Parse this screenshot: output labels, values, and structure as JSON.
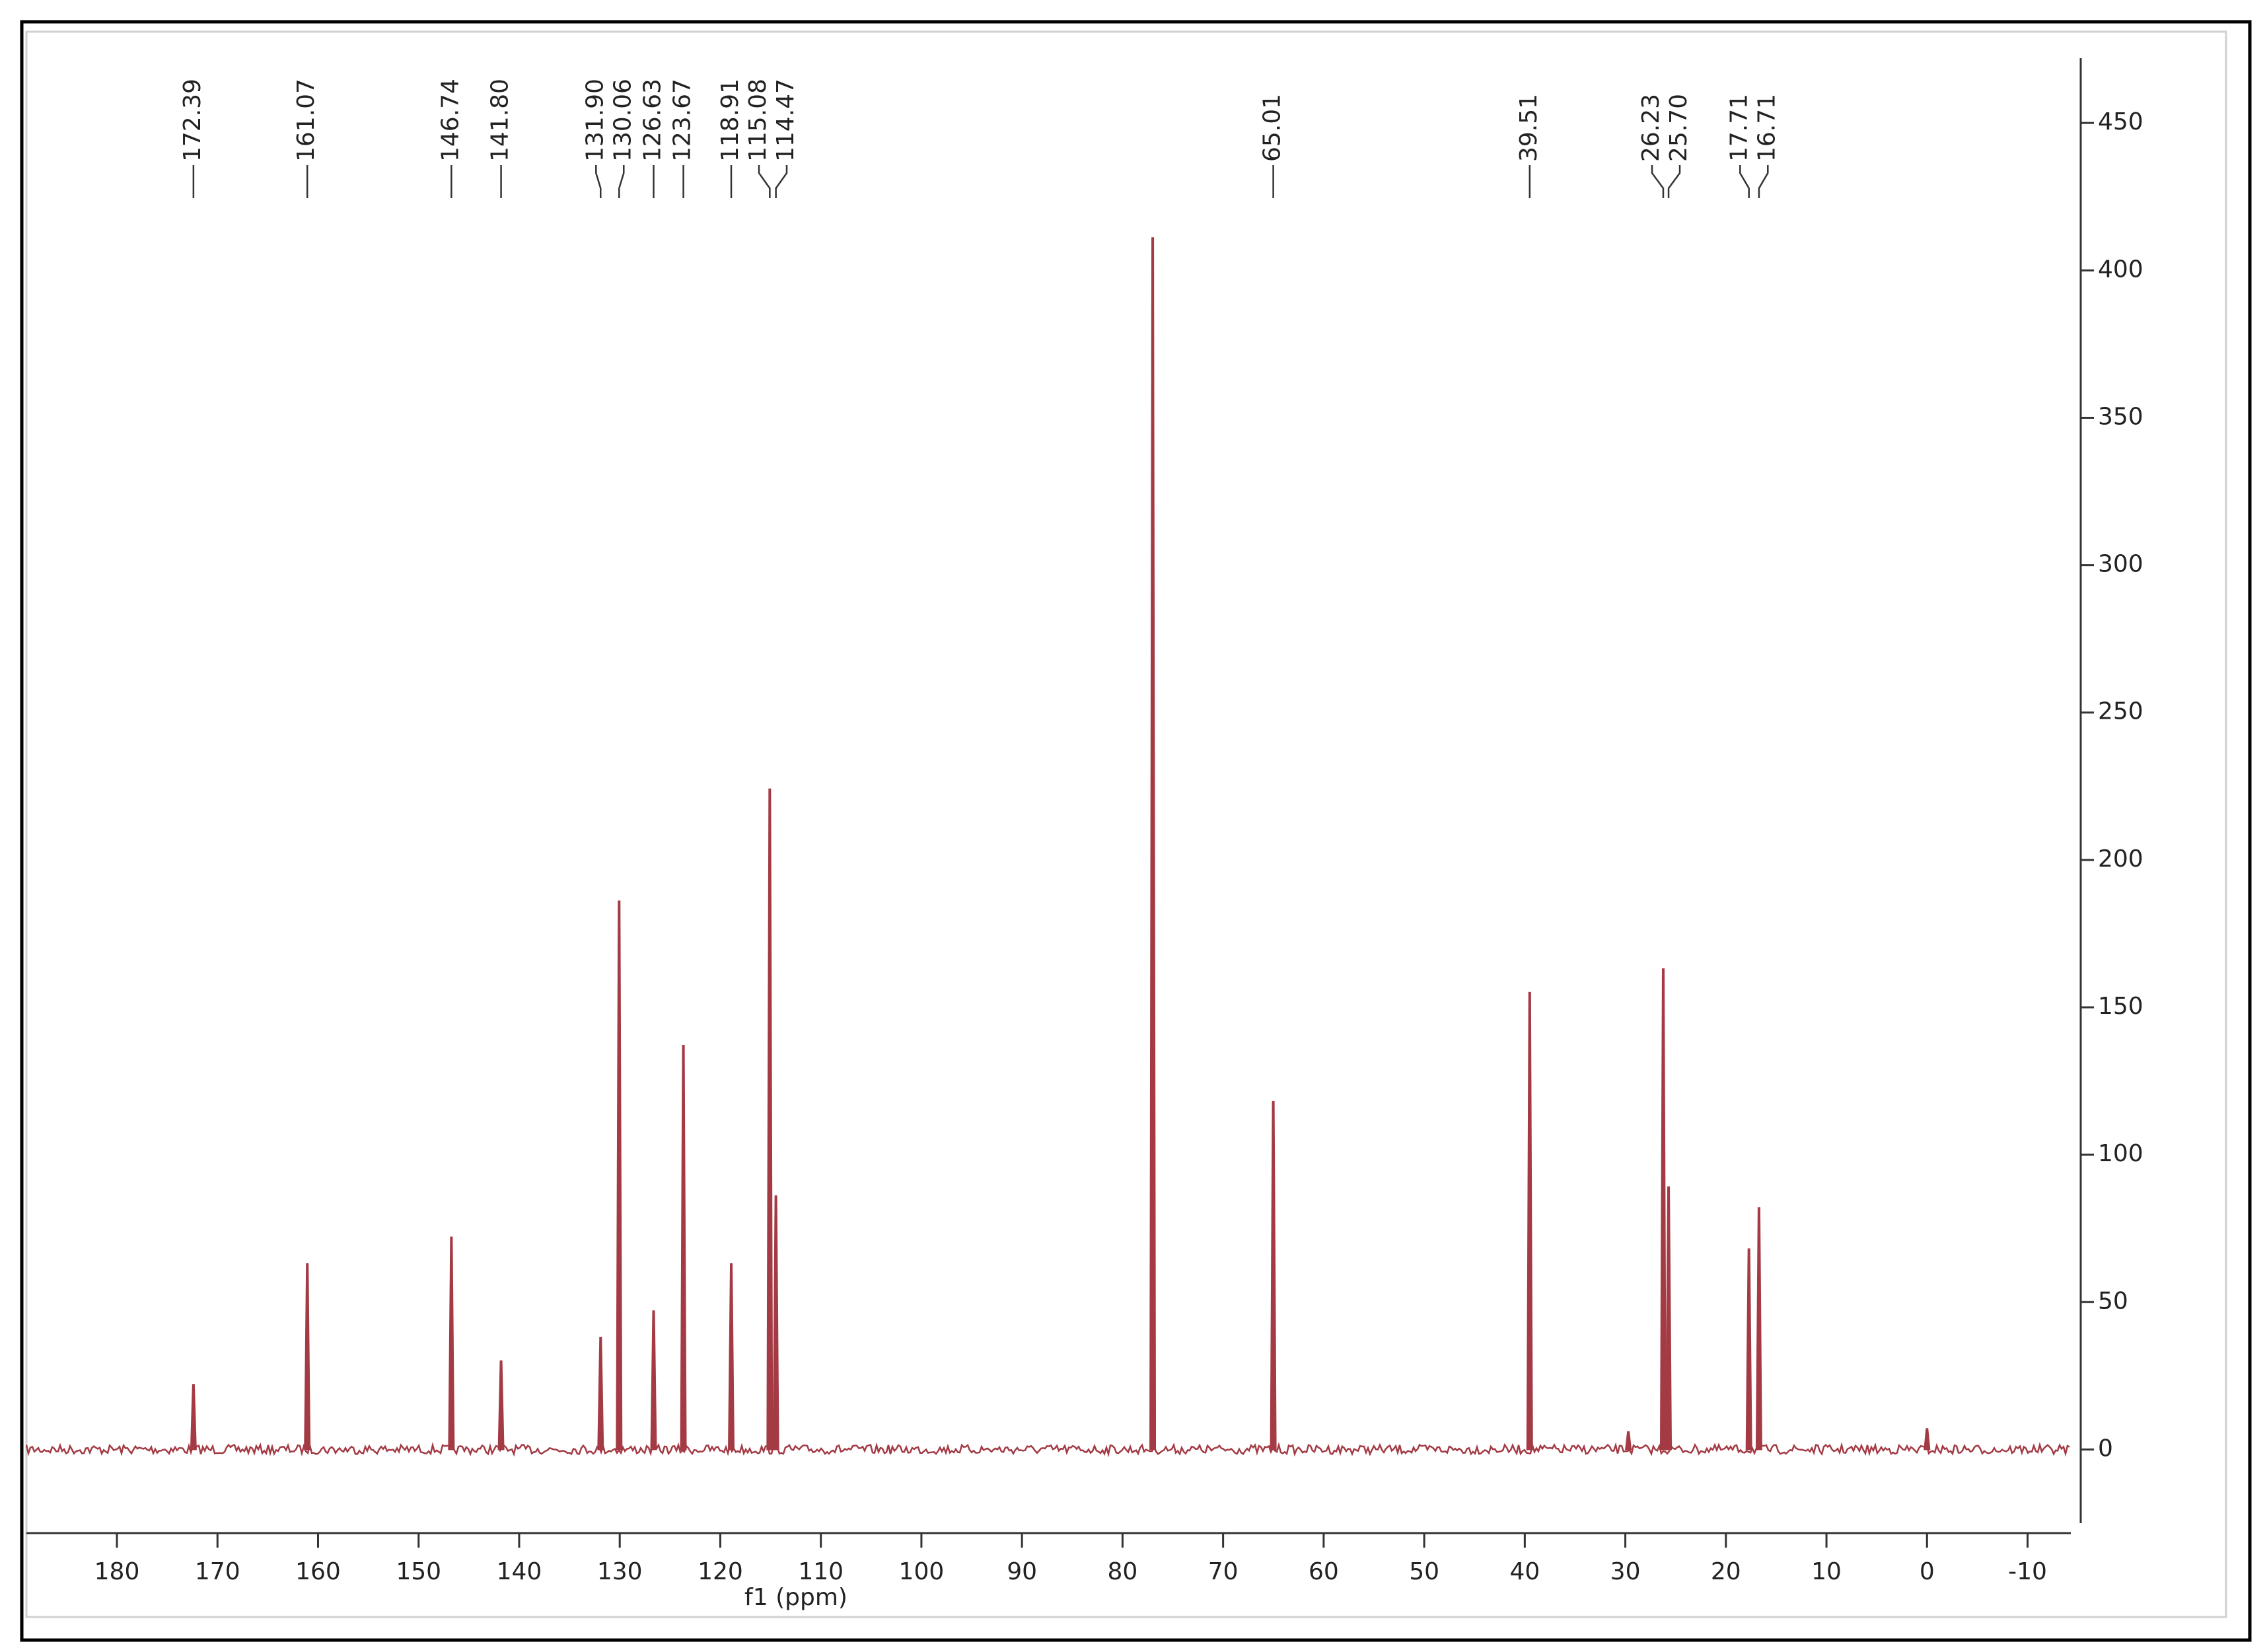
{
  "chart_data": {
    "type": "spectrum",
    "xlabel": "f1 (ppm)",
    "x": [
      172.39,
      161.07,
      146.74,
      141.8,
      131.9,
      130.06,
      126.63,
      123.67,
      118.91,
      115.08,
      114.47,
      77.0,
      65.01,
      39.51,
      29.7,
      26.23,
      25.7,
      17.71,
      16.71,
      0.0
    ],
    "values": [
      22,
      63,
      72,
      30,
      38,
      186,
      47,
      137,
      63,
      224,
      86,
      411,
      118,
      155,
      6,
      163,
      89,
      68,
      82,
      7
    ],
    "peak_labels": [
      "172.39",
      "161.07",
      "146.74",
      "141.80",
      "131.90",
      "130.06",
      "126.63",
      "123.67",
      "118.91",
      "115.08",
      "114.47",
      null,
      "65.01",
      "39.51",
      null,
      "26.23",
      "25.70",
      "17.71",
      "16.71",
      null
    ],
    "color": "#a33a44",
    "xlim": [
      189,
      -14.3
    ],
    "xticks": [
      180,
      170,
      160,
      150,
      140,
      130,
      120,
      110,
      100,
      90,
      80,
      70,
      60,
      50,
      40,
      30,
      20,
      10,
      0,
      -10
    ],
    "ylim": [
      -25,
      472
    ],
    "yticks": [
      0,
      50,
      100,
      150,
      200,
      250,
      300,
      350,
      400,
      450
    ]
  }
}
